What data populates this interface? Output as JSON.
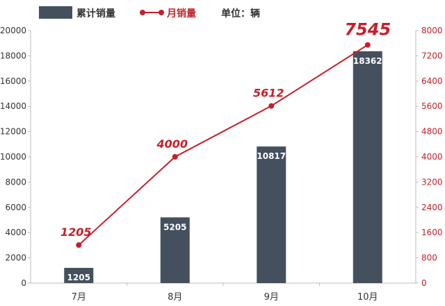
{
  "chart_data": {
    "type": "bar-line-combo",
    "categories": [
      "7月",
      "8月",
      "9月",
      "10月"
    ],
    "series": [
      {
        "name": "累计销量",
        "type": "bar",
        "axis": "left",
        "values": [
          1205,
          5205,
          10817,
          18362
        ],
        "color": "#44505e"
      },
      {
        "name": "月销量",
        "type": "line",
        "axis": "right",
        "values": [
          1205,
          4000,
          5612,
          7545
        ],
        "color": "#c81e2a"
      }
    ],
    "unit_label": "单位：辆",
    "y_left": {
      "min": 0,
      "max": 20000,
      "ticks": [
        0,
        2000,
        4000,
        6000,
        8000,
        10000,
        12000,
        14000,
        16000,
        18000,
        20000
      ]
    },
    "y_right": {
      "min": 0,
      "max": 8000,
      "ticks": [
        0,
        800,
        1600,
        2400,
        3200,
        4000,
        4800,
        5600,
        6400,
        7200,
        8000
      ]
    },
    "legend": "top"
  }
}
